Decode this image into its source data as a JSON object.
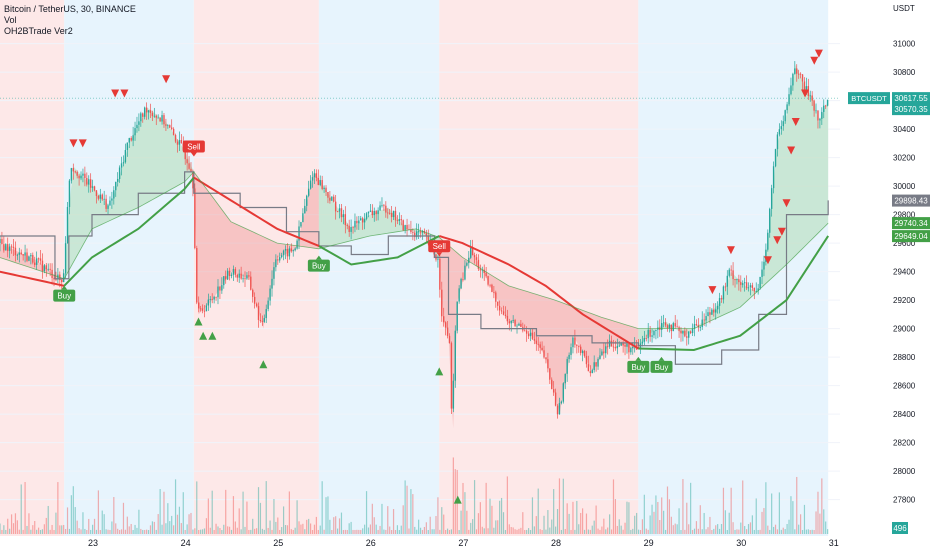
{
  "legend": {
    "symbol_line": "Bitcoin / TetherUS, 30, BINANCE",
    "volume_label": "Vol",
    "indicator_label": "OH2BTrade Ver2"
  },
  "chart_data": {
    "type": "candlestick",
    "price_axis": {
      "unit_label": "USDT",
      "ticks": [
        31000,
        30800,
        30600,
        30400,
        30200,
        30000,
        29800,
        29600,
        29400,
        29200,
        29000,
        28800,
        28600,
        28400,
        28200,
        28000,
        27800
      ],
      "ylim": [
        27600,
        31250
      ]
    },
    "time_axis": {
      "labels": [
        "23",
        "24",
        "25",
        "26",
        "27",
        "28",
        "29",
        "30",
        "31"
      ]
    },
    "price_badges": [
      {
        "label": "BTCUSDT",
        "value": "30617.55",
        "color": "#26a69a"
      },
      {
        "label": "",
        "value": "30570.35",
        "color": "#26a69a"
      },
      {
        "label": "",
        "value": "29898.43",
        "color": "#787b86"
      },
      {
        "label": "",
        "value": "29740.34",
        "color": "#43a047"
      },
      {
        "label": "",
        "value": "29649.04",
        "color": "#43a047"
      }
    ],
    "volume_badge": "496",
    "signals": [
      {
        "label": "Buy",
        "day": 22.7,
        "price": 29330,
        "side": "buy"
      },
      {
        "label": "Sell",
        "day": 24.1,
        "price": 30180,
        "side": "sell"
      },
      {
        "label": "Buy",
        "day": 25.45,
        "price": 29540,
        "side": "buy"
      },
      {
        "label": "Sell",
        "day": 26.75,
        "price": 29480,
        "side": "sell"
      },
      {
        "label": "Buy",
        "day": 28.9,
        "price": 28830,
        "side": "buy"
      },
      {
        "label": "Buy",
        "day": 29.15,
        "price": 28830,
        "side": "buy"
      }
    ],
    "sessions": [
      {
        "from": 22.0,
        "to": 22.7,
        "trend": "down"
      },
      {
        "from": 22.7,
        "to": 24.1,
        "trend": "up"
      },
      {
        "from": 24.1,
        "to": 25.45,
        "trend": "down"
      },
      {
        "from": 25.45,
        "to": 26.75,
        "trend": "up"
      },
      {
        "from": 26.75,
        "to": 28.9,
        "trend": "down"
      },
      {
        "from": 28.9,
        "to": 30.95,
        "trend": "up"
      }
    ],
    "price_path": [
      [
        22.0,
        29600
      ],
      [
        22.4,
        29480
      ],
      [
        22.7,
        29320
      ],
      [
        22.78,
        30150
      ],
      [
        23.0,
        30000
      ],
      [
        23.2,
        29850
      ],
      [
        23.4,
        30300
      ],
      [
        23.6,
        30550
      ],
      [
        23.8,
        30450
      ],
      [
        24.0,
        30250
      ],
      [
        24.1,
        30100
      ],
      [
        24.15,
        29100
      ],
      [
        24.3,
        29200
      ],
      [
        24.5,
        29400
      ],
      [
        24.7,
        29350
      ],
      [
        24.85,
        29000
      ],
      [
        25.0,
        29500
      ],
      [
        25.2,
        29550
      ],
      [
        25.4,
        30100
      ],
      [
        25.6,
        29900
      ],
      [
        25.8,
        29700
      ],
      [
        26.0,
        29800
      ],
      [
        26.2,
        29850
      ],
      [
        26.4,
        29700
      ],
      [
        26.6,
        29650
      ],
      [
        26.75,
        29480
      ],
      [
        26.8,
        29050
      ],
      [
        26.88,
        28900
      ],
      [
        26.9,
        28300
      ],
      [
        26.95,
        29200
      ],
      [
        27.1,
        29550
      ],
      [
        27.3,
        29300
      ],
      [
        27.5,
        29050
      ],
      [
        27.7,
        29000
      ],
      [
        27.9,
        28800
      ],
      [
        28.05,
        28400
      ],
      [
        28.2,
        28950
      ],
      [
        28.4,
        28700
      ],
      [
        28.6,
        28900
      ],
      [
        28.9,
        28850
      ],
      [
        29.0,
        28950
      ],
      [
        29.2,
        29050
      ],
      [
        29.4,
        28950
      ],
      [
        29.6,
        29050
      ],
      [
        29.8,
        29200
      ],
      [
        29.9,
        29400
      ],
      [
        30.05,
        29300
      ],
      [
        30.2,
        29250
      ],
      [
        30.3,
        29600
      ],
      [
        30.4,
        30300
      ],
      [
        30.5,
        30500
      ],
      [
        30.6,
        30850
      ],
      [
        30.7,
        30700
      ],
      [
        30.8,
        30600
      ],
      [
        30.85,
        30450
      ],
      [
        30.95,
        30600
      ]
    ],
    "band_fast": [
      [
        22.0,
        29500
      ],
      [
        22.7,
        29350
      ],
      [
        23.0,
        29700
      ],
      [
        23.5,
        29850
      ],
      [
        24.0,
        30030
      ],
      [
        24.1,
        30100
      ],
      [
        24.5,
        29750
      ],
      [
        25.0,
        29600
      ],
      [
        25.45,
        29560
      ],
      [
        26.0,
        29650
      ],
      [
        26.5,
        29700
      ],
      [
        26.75,
        29640
      ],
      [
        27.0,
        29500
      ],
      [
        27.5,
        29300
      ],
      [
        28.0,
        29200
      ],
      [
        28.5,
        29080
      ],
      [
        28.9,
        29000
      ],
      [
        29.5,
        29000
      ],
      [
        30.0,
        29150
      ],
      [
        30.5,
        29450
      ],
      [
        30.95,
        29740
      ]
    ],
    "band_slow": [
      [
        22.0,
        29400
      ],
      [
        22.7,
        29300
      ],
      [
        23.0,
        29500
      ],
      [
        23.5,
        29700
      ],
      [
        24.0,
        29980
      ],
      [
        24.1,
        30060
      ],
      [
        24.5,
        29900
      ],
      [
        25.0,
        29700
      ],
      [
        25.45,
        29580
      ],
      [
        25.8,
        29450
      ],
      [
        26.3,
        29500
      ],
      [
        26.75,
        29650
      ],
      [
        27.0,
        29600
      ],
      [
        27.5,
        29450
      ],
      [
        27.9,
        29300
      ],
      [
        28.3,
        29100
      ],
      [
        28.9,
        28860
      ],
      [
        29.5,
        28850
      ],
      [
        30.0,
        28950
      ],
      [
        30.5,
        29200
      ],
      [
        30.95,
        29650
      ]
    ],
    "step_line": [
      [
        22.0,
        29650
      ],
      [
        22.6,
        29350
      ],
      [
        22.75,
        29650
      ],
      [
        23.0,
        29800
      ],
      [
        23.5,
        29950
      ],
      [
        24.0,
        30100
      ],
      [
        24.1,
        29950
      ],
      [
        24.6,
        29850
      ],
      [
        25.1,
        29680
      ],
      [
        25.45,
        29580
      ],
      [
        25.8,
        29520
      ],
      [
        26.2,
        29650
      ],
      [
        26.7,
        29500
      ],
      [
        26.85,
        29100
      ],
      [
        27.2,
        29000
      ],
      [
        27.8,
        28950
      ],
      [
        28.4,
        28900
      ],
      [
        28.9,
        28880
      ],
      [
        29.3,
        28750
      ],
      [
        29.8,
        28850
      ],
      [
        30.2,
        29100
      ],
      [
        30.5,
        29800
      ],
      [
        30.95,
        29900
      ]
    ],
    "up_triangles": [
      {
        "day": 24.15,
        "price": 29050
      },
      {
        "day": 24.2,
        "price": 28950
      },
      {
        "day": 24.3,
        "price": 28950
      },
      {
        "day": 24.85,
        "price": 28750
      },
      {
        "day": 26.75,
        "price": 28700
      },
      {
        "day": 26.95,
        "price": 27800
      }
    ],
    "down_triangles": [
      {
        "day": 22.8,
        "price": 30300
      },
      {
        "day": 22.9,
        "price": 30300
      },
      {
        "day": 23.25,
        "price": 30650
      },
      {
        "day": 23.35,
        "price": 30650
      },
      {
        "day": 23.8,
        "price": 30750
      },
      {
        "day": 29.7,
        "price": 29270
      },
      {
        "day": 29.9,
        "price": 29550
      },
      {
        "day": 30.3,
        "price": 29480
      },
      {
        "day": 30.4,
        "price": 29620
      },
      {
        "day": 30.45,
        "price": 29680
      },
      {
        "day": 30.5,
        "price": 29880
      },
      {
        "day": 30.55,
        "price": 30250
      },
      {
        "day": 30.6,
        "price": 30450
      },
      {
        "day": 30.7,
        "price": 30650
      },
      {
        "day": 30.8,
        "price": 30880
      },
      {
        "day": 30.85,
        "price": 30930
      }
    ]
  },
  "colors": {
    "background": "#ffffff",
    "up_zone": "#e3f2fd",
    "down_zone": "#fde4e4",
    "candle_up": "#26a69a",
    "candle_down": "#ef5350",
    "fast_line": "#43a047",
    "slow_line": "#e53935",
    "step_line": "#787b86",
    "fill_up": "#a5d6a7",
    "fill_down": "#ef9a9a",
    "buy": "#43a047",
    "sell": "#e53935",
    "axis_text": "#131722"
  }
}
